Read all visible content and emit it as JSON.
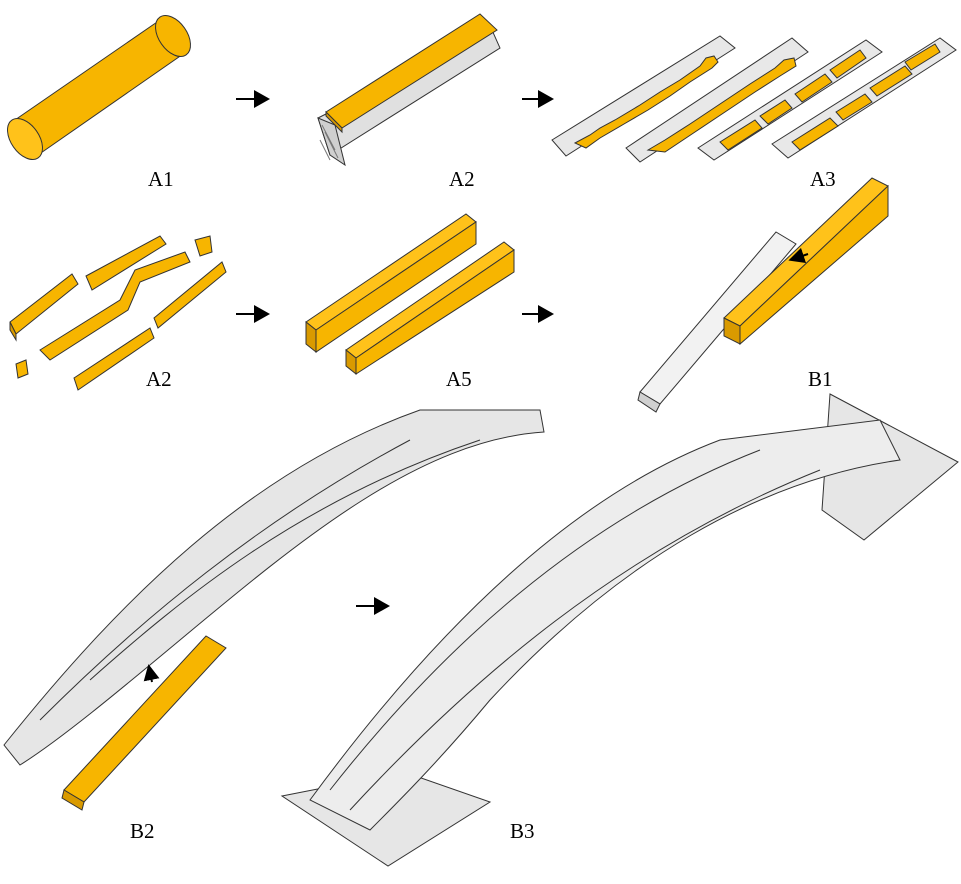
{
  "colors": {
    "timber": "#F7B500",
    "timber_dark": "#D99A00",
    "grey_face": "#E6E6E6",
    "grey_side": "#D0D0D0",
    "grey_top": "#F2F2F2",
    "outline": "#333333",
    "arrow": "#000000"
  },
  "labels": {
    "a1": "A1",
    "a2_top": "A2",
    "a3": "A3",
    "a2_mid": "A2",
    "a5": "A5",
    "b1": "B1",
    "b2": "B2",
    "b3": "B3"
  },
  "icons": {
    "process_arrow": "right-triangle-arrow",
    "insert_arrow": "curved-small-arrow"
  }
}
